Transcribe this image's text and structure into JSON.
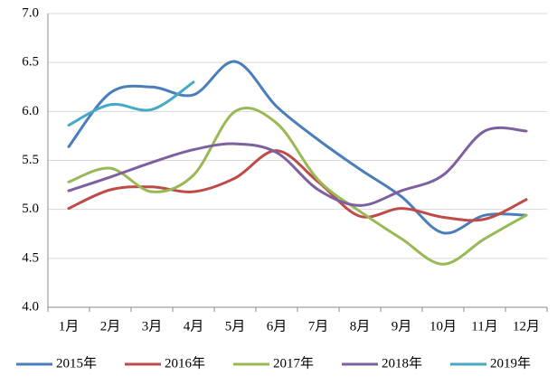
{
  "chart_data": {
    "type": "line",
    "categories": [
      "1月",
      "2月",
      "3月",
      "4月",
      "5月",
      "6月",
      "7月",
      "8月",
      "9月",
      "10月",
      "11月",
      "12月"
    ],
    "series": [
      {
        "name": "2015年",
        "color": "#4a7ebb",
        "values": [
          5.64,
          6.19,
          6.25,
          6.17,
          6.51,
          6.05,
          5.71,
          5.41,
          5.13,
          4.76,
          4.94,
          4.94
        ]
      },
      {
        "name": "2016年",
        "color": "#be4b48",
        "values": [
          5.01,
          5.2,
          5.23,
          5.18,
          5.32,
          5.6,
          5.28,
          4.93,
          5.01,
          4.92,
          4.9,
          5.1
        ]
      },
      {
        "name": "2017年",
        "color": "#98b954",
        "values": [
          5.28,
          5.42,
          5.18,
          5.35,
          6.0,
          5.88,
          5.3,
          4.98,
          4.7,
          4.44,
          4.7,
          4.94
        ]
      },
      {
        "name": "2018年",
        "color": "#7d60a0",
        "values": [
          5.19,
          5.33,
          5.48,
          5.61,
          5.67,
          5.58,
          5.2,
          5.04,
          5.19,
          5.35,
          5.8,
          5.8
        ]
      },
      {
        "name": "2019年",
        "color": "#46aac5",
        "values": [
          5.86,
          6.07,
          6.02,
          6.3,
          null,
          null,
          null,
          null,
          null,
          null,
          null,
          null
        ]
      }
    ],
    "ylim": [
      4,
      7
    ],
    "yticks": [
      {
        "value": 4,
        "label": "4.0"
      },
      {
        "value": 4.5,
        "label": "4.5"
      },
      {
        "value": 5,
        "label": "5.0"
      },
      {
        "value": 5.5,
        "label": "5.5"
      },
      {
        "value": 6,
        "label": "6.0"
      },
      {
        "value": 6.5,
        "label": "6.5"
      },
      {
        "value": 7,
        "label": "7.0"
      }
    ],
    "grid": true,
    "legend": "bottom",
    "smooth": true
  }
}
